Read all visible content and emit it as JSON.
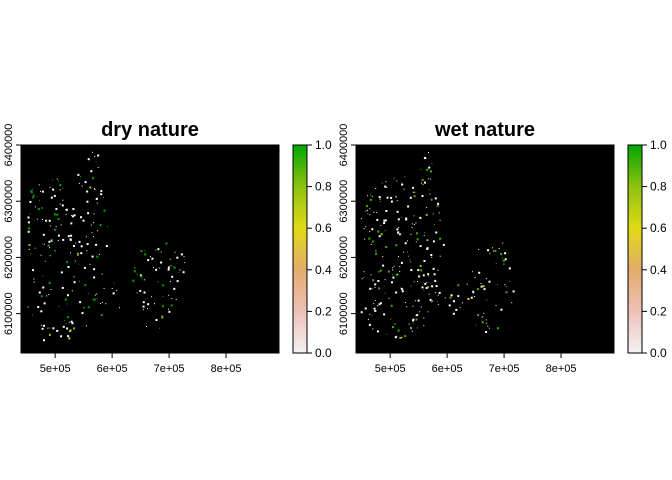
{
  "chart_data": [
    {
      "type": "heatmap",
      "title": "dry nature",
      "xlabel": "",
      "ylabel": "",
      "x_ticks": [
        500000,
        600000,
        700000,
        800000
      ],
      "x_tick_labels": [
        "5e+05",
        "6e+05",
        "7e+05",
        "8e+05"
      ],
      "xlim": [
        440000,
        893000
      ],
      "y_ticks": [
        6100000,
        6200000,
        6300000,
        6400000
      ],
      "y_tick_labels": [
        "6100000",
        "6200000",
        "6300000",
        "6400000"
      ],
      "ylim": [
        6030000,
        6400000
      ],
      "legend": {
        "placement": "right",
        "range": [
          0,
          1
        ],
        "ticks": [
          0.0,
          0.2,
          0.4,
          0.6,
          0.8,
          1.0
        ],
        "tick_labels": [
          "0.0",
          "0.2",
          "0.4",
          "0.6",
          "0.8",
          "1.0"
        ],
        "colors": [
          "#f2f2f2",
          "#eec1b8",
          "#e3ac6a",
          "#e0d916",
          "#8fc210",
          "#00a600"
        ]
      },
      "background_color": "#000000",
      "grid": false
    },
    {
      "type": "heatmap",
      "title": "wet nature",
      "xlabel": "",
      "ylabel": "",
      "x_ticks": [
        500000,
        600000,
        700000,
        800000
      ],
      "x_tick_labels": [
        "5e+05",
        "6e+05",
        "7e+05",
        "8e+05"
      ],
      "xlim": [
        440000,
        893000
      ],
      "y_ticks": [
        6100000,
        6200000,
        6300000,
        6400000
      ],
      "y_tick_labels": [
        "6100000",
        "6200000",
        "6300000",
        "6400000"
      ],
      "ylim": [
        6030000,
        6400000
      ],
      "legend": {
        "placement": "right",
        "range": [
          0,
          1
        ],
        "ticks": [
          0.0,
          0.2,
          0.4,
          0.6,
          0.8,
          1.0
        ],
        "tick_labels": [
          "0.0",
          "0.2",
          "0.4",
          "0.6",
          "0.8",
          "1.0"
        ],
        "colors": [
          "#f2f2f2",
          "#eec1b8",
          "#e3ac6a",
          "#e0d916",
          "#8fc210",
          "#00a600"
        ]
      },
      "background_color": "#000000",
      "grid": false
    }
  ]
}
